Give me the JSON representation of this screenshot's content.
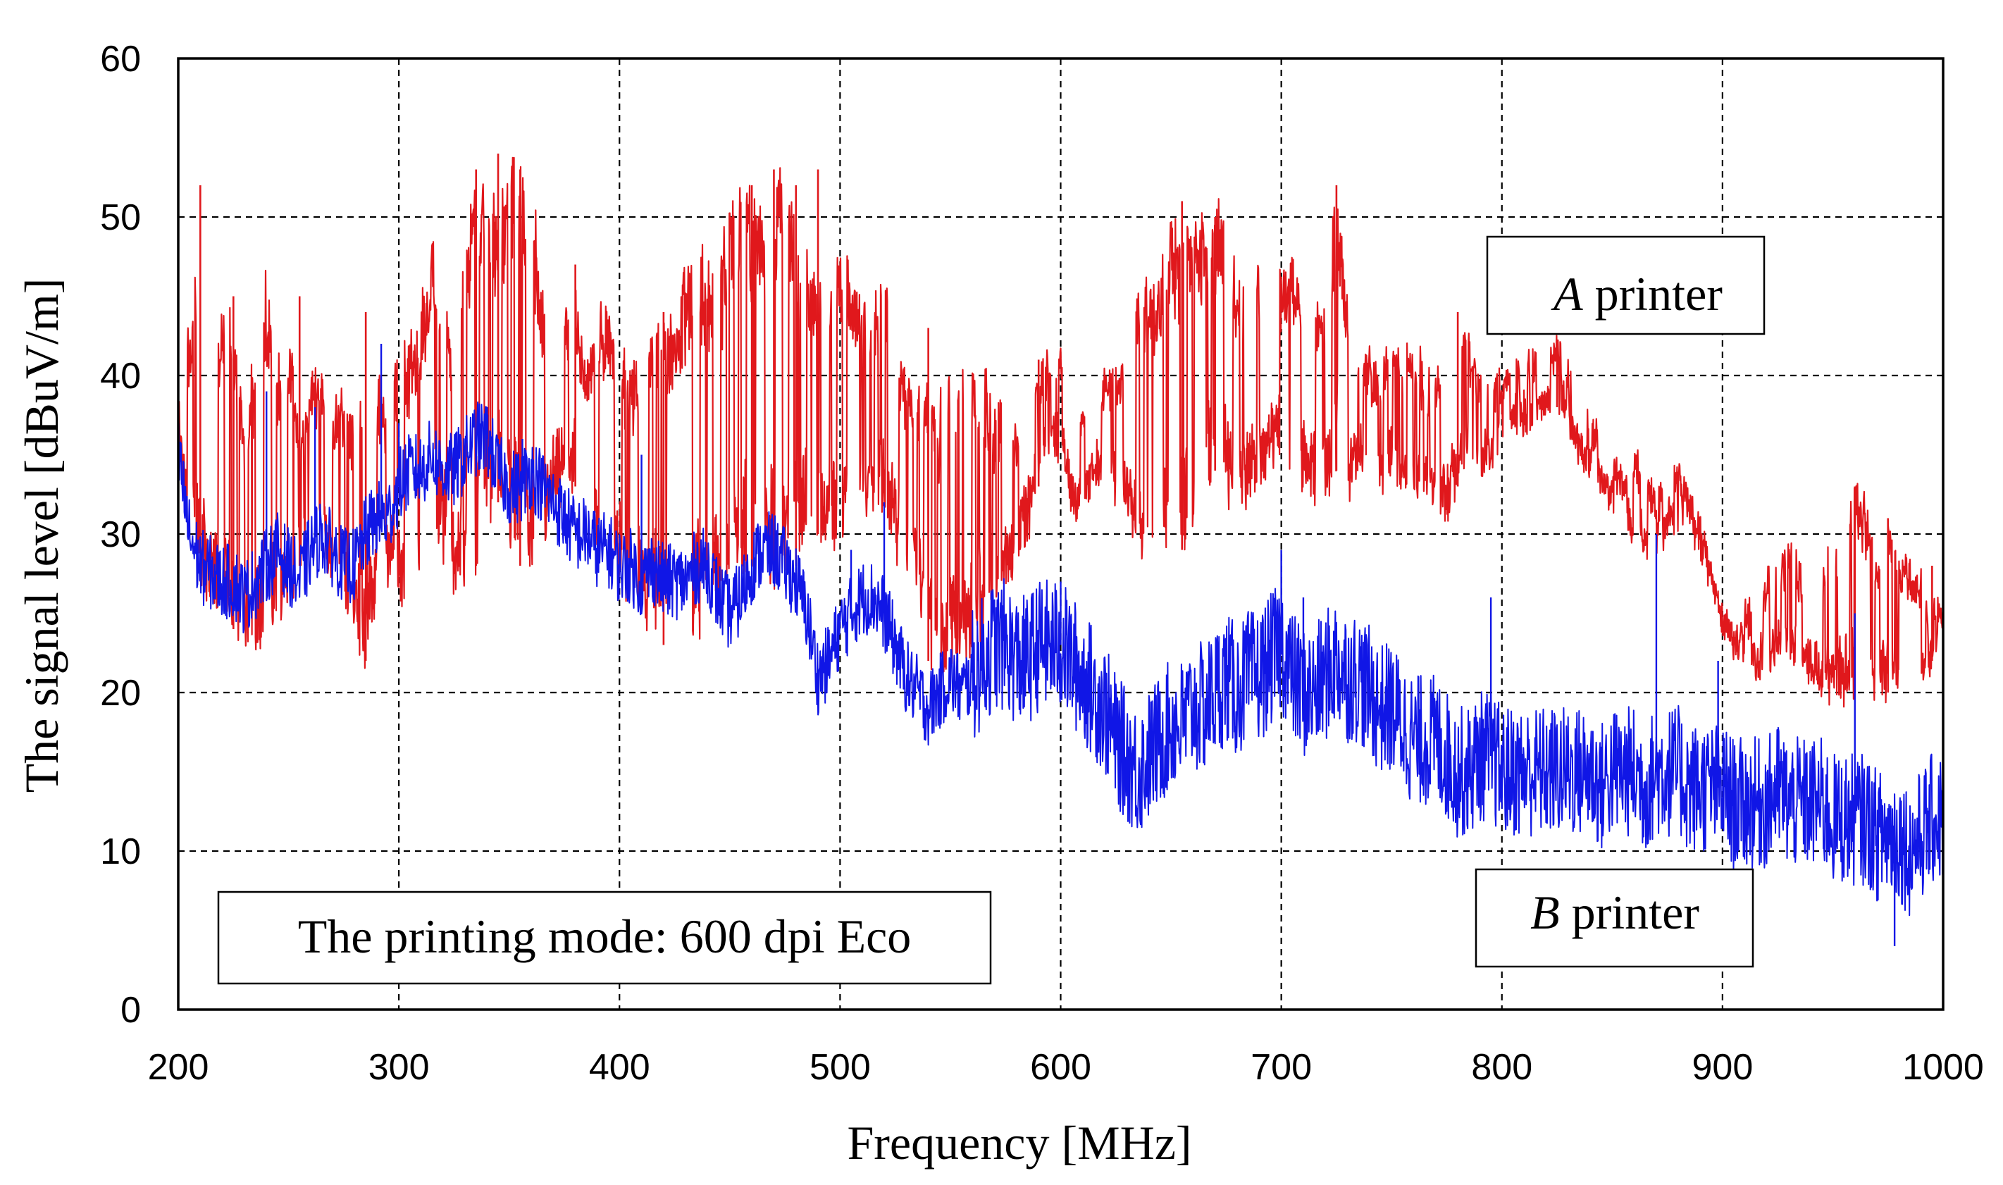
{
  "chart_data": {
    "type": "line",
    "title": "",
    "xlabel": "Frequency [MHz]",
    "ylabel": "The signal level [dBuV/m]",
    "xlim": [
      200,
      1000
    ],
    "ylim": [
      0,
      60
    ],
    "xticks": [
      200,
      300,
      400,
      500,
      600,
      700,
      800,
      900,
      1000
    ],
    "yticks": [
      0,
      10,
      20,
      30,
      40,
      50,
      60
    ],
    "grid": true,
    "legend_boxes": {
      "a": {
        "prefix": "A",
        "text": " printer",
        "placement": "upper-right"
      },
      "b": {
        "prefix": "B",
        "text": " printer",
        "placement": "lower-right"
      }
    },
    "annotation": "The printing mode: 600 dpi Eco",
    "series": [
      {
        "name": "A printer",
        "color": "#e0181c",
        "x": [
          200,
          205,
          210,
          215,
          220,
          225,
          230,
          235,
          240,
          245,
          250,
          255,
          260,
          265,
          270,
          275,
          280,
          285,
          290,
          295,
          300,
          305,
          310,
          315,
          320,
          325,
          330,
          335,
          340,
          345,
          350,
          355,
          360,
          365,
          370,
          375,
          380,
          385,
          390,
          395,
          400,
          405,
          410,
          415,
          420,
          425,
          430,
          435,
          440,
          445,
          450,
          455,
          460,
          465,
          470,
          475,
          480,
          485,
          490,
          495,
          500,
          505,
          510,
          515,
          520,
          525,
          530,
          535,
          540,
          545,
          550,
          555,
          560,
          565,
          570,
          575,
          580,
          585,
          590,
          595,
          600,
          605,
          610,
          615,
          620,
          625,
          630,
          635,
          640,
          645,
          650,
          655,
          660,
          665,
          670,
          675,
          680,
          685,
          690,
          695,
          700,
          705,
          710,
          715,
          720,
          725,
          730,
          735,
          740,
          745,
          750,
          755,
          760,
          765,
          770,
          775,
          780,
          785,
          790,
          795,
          800,
          805,
          810,
          815,
          820,
          825,
          830,
          835,
          840,
          845,
          850,
          855,
          860,
          865,
          870,
          875,
          880,
          885,
          890,
          895,
          900,
          905,
          910,
          915,
          920,
          925,
          930,
          935,
          940,
          945,
          950,
          955,
          960,
          965,
          970,
          975,
          980,
          985,
          990,
          995,
          1000
        ],
        "lower": [
          34,
          31,
          27,
          26,
          25,
          24,
          22,
          22,
          23,
          24,
          26,
          28,
          30,
          29,
          27,
          25,
          24,
          22,
          25,
          27,
          26,
          26,
          27,
          30,
          29,
          27,
          26,
          28,
          31,
          32,
          30,
          28,
          27,
          28,
          31,
          33,
          33,
          31,
          30,
          28,
          27,
          26,
          25,
          24,
          23,
          22,
          23,
          24,
          24,
          25,
          26,
          27,
          28,
          27,
          27,
          28,
          28,
          30,
          30,
          29,
          30,
          31,
          32,
          31,
          31,
          29,
          28,
          27,
          22,
          21,
          21,
          22,
          22,
          24,
          24,
          27,
          28,
          30,
          33,
          36,
          35,
          32,
          31,
          34,
          33,
          32,
          31,
          30,
          28,
          29,
          28,
          29,
          30,
          32,
          34,
          33,
          31,
          32,
          32,
          34,
          35,
          34,
          33,
          32,
          33,
          34,
          32,
          34,
          33,
          33,
          34,
          33,
          32,
          33,
          32,
          31,
          33,
          34,
          34,
          34,
          36,
          37,
          37,
          37,
          38,
          38,
          37,
          35,
          34,
          33,
          32,
          31,
          30,
          29,
          29,
          30,
          31,
          30,
          29,
          27,
          24,
          23,
          22,
          21,
          22,
          22,
          22,
          22,
          21,
          20,
          20,
          20,
          20,
          21,
          20,
          20,
          21,
          21,
          21,
          22,
          22
        ],
        "upper": [
          50,
          42,
          52,
          38,
          45,
          43,
          38,
          42,
          46,
          40,
          44,
          36,
          40,
          40,
          38,
          40,
          36,
          44,
          40,
          38,
          42,
          42,
          44,
          48,
          45,
          42,
          48,
          53,
          52,
          50,
          53,
          54,
          52,
          46,
          46,
          44,
          46,
          40,
          44,
          44,
          42,
          40,
          42,
          44,
          44,
          43,
          48,
          47,
          48,
          46,
          52,
          52,
          51,
          51,
          53,
          52,
          50,
          48,
          46,
          45,
          48,
          46,
          44,
          44,
          47,
          42,
          40,
          38,
          40,
          38,
          42,
          40,
          41,
          40,
          38,
          40,
          36,
          40,
          40,
          41,
          41,
          40,
          38,
          37,
          40,
          40,
          41,
          45,
          46,
          46,
          50,
          49,
          51,
          49,
          50,
          51,
          46,
          46,
          48,
          46,
          46,
          47,
          45,
          45,
          44,
          52,
          44,
          42,
          41,
          40,
          42,
          41,
          42,
          40,
          40,
          40,
          44,
          42,
          40,
          39,
          40,
          40,
          41,
          41,
          40,
          42,
          40,
          38,
          37,
          36,
          35,
          33,
          35,
          34,
          32,
          33,
          34,
          32,
          30,
          28,
          27,
          26,
          25,
          26,
          27,
          28,
          29,
          28,
          27,
          28,
          29,
          32,
          33,
          32,
          29,
          31,
          29,
          28,
          27,
          26,
          25
        ],
        "spikes": [
          [
            210,
            52
          ],
          [
            225,
            45
          ],
          [
            255,
            45
          ],
          [
            285,
            44
          ],
          [
            335,
            53
          ],
          [
            345,
            54
          ],
          [
            355,
            53
          ],
          [
            380,
            47
          ],
          [
            420,
            44
          ],
          [
            460,
            52
          ],
          [
            470,
            53
          ],
          [
            480,
            52
          ],
          [
            490,
            53
          ],
          [
            540,
            43
          ],
          [
            590,
            41
          ],
          [
            655,
            51
          ],
          [
            670,
            50
          ],
          [
            725,
            52
          ],
          [
            780,
            44
          ],
          [
            825,
            42
          ],
          [
            960,
            33
          ],
          [
            975,
            31
          ],
          [
            995,
            28
          ]
        ]
      },
      {
        "name": "B printer",
        "color": "#1016e6",
        "x": [
          200,
          205,
          210,
          215,
          220,
          225,
          230,
          235,
          240,
          245,
          250,
          255,
          260,
          265,
          270,
          275,
          280,
          285,
          290,
          295,
          300,
          305,
          310,
          315,
          320,
          325,
          330,
          335,
          340,
          345,
          350,
          355,
          360,
          365,
          370,
          375,
          380,
          385,
          390,
          395,
          400,
          405,
          410,
          415,
          420,
          425,
          430,
          435,
          440,
          445,
          450,
          455,
          460,
          465,
          470,
          475,
          480,
          485,
          490,
          495,
          500,
          505,
          510,
          515,
          520,
          525,
          530,
          535,
          540,
          545,
          550,
          555,
          560,
          565,
          570,
          575,
          580,
          585,
          590,
          595,
          600,
          605,
          610,
          615,
          620,
          625,
          630,
          635,
          640,
          645,
          650,
          655,
          660,
          665,
          670,
          675,
          680,
          685,
          690,
          695,
          700,
          705,
          710,
          715,
          720,
          725,
          730,
          735,
          740,
          745,
          750,
          755,
          760,
          765,
          770,
          775,
          780,
          785,
          790,
          795,
          800,
          805,
          810,
          815,
          820,
          825,
          830,
          835,
          840,
          845,
          850,
          855,
          860,
          865,
          870,
          875,
          880,
          885,
          890,
          895,
          900,
          905,
          910,
          915,
          920,
          925,
          930,
          935,
          940,
          945,
          950,
          955,
          960,
          965,
          970,
          975,
          980,
          985,
          990,
          995,
          1000
        ],
        "center": [
          35,
          30,
          28,
          27.5,
          27,
          27,
          26,
          27,
          28,
          29,
          28,
          27,
          29,
          30,
          29,
          28,
          28,
          30,
          31,
          31,
          33,
          34,
          34,
          35,
          34,
          34,
          35,
          36,
          36,
          34,
          33,
          33,
          34,
          33,
          32,
          31,
          30,
          30,
          29,
          29,
          28,
          28,
          27,
          28,
          27,
          27,
          27,
          28,
          28,
          26,
          25,
          26,
          28,
          29,
          29,
          28,
          27,
          25,
          21,
          22,
          24,
          25,
          26,
          26,
          25,
          23,
          21,
          20,
          19,
          20,
          21,
          20,
          21,
          22,
          23,
          23,
          22,
          22,
          23,
          23,
          23,
          22,
          21,
          20,
          19,
          17,
          16,
          15,
          16,
          17,
          18,
          18,
          19,
          19,
          20,
          21,
          20,
          21,
          21,
          22,
          23,
          21,
          20,
          20,
          21,
          22,
          21,
          21,
          20,
          19,
          19,
          18,
          17,
          17,
          17,
          16,
          15,
          15,
          16,
          16,
          15,
          15,
          15,
          15,
          15,
          15,
          15,
          15,
          15,
          14,
          15,
          15,
          15,
          14,
          15,
          15,
          15,
          14,
          14,
          14,
          14,
          13,
          13,
          13,
          13,
          14,
          13,
          13,
          13,
          13,
          12,
          12,
          12,
          12,
          11,
          11,
          11,
          10,
          11,
          12,
          12
        ],
        "spikes": [
          [
            240,
            39
          ],
          [
            262,
            38
          ],
          [
            292,
            42
          ],
          [
            300,
            37
          ],
          [
            340,
            38
          ],
          [
            356,
            36
          ],
          [
            410,
            35
          ],
          [
            505,
            29
          ],
          [
            520,
            32
          ],
          [
            600,
            27
          ],
          [
            700,
            29
          ],
          [
            710,
            26
          ],
          [
            795,
            26
          ],
          [
            870,
            30
          ],
          [
            898,
            22
          ],
          [
            960,
            25
          ],
          [
            978,
            4
          ],
          [
            990,
            9
          ]
        ]
      }
    ]
  }
}
